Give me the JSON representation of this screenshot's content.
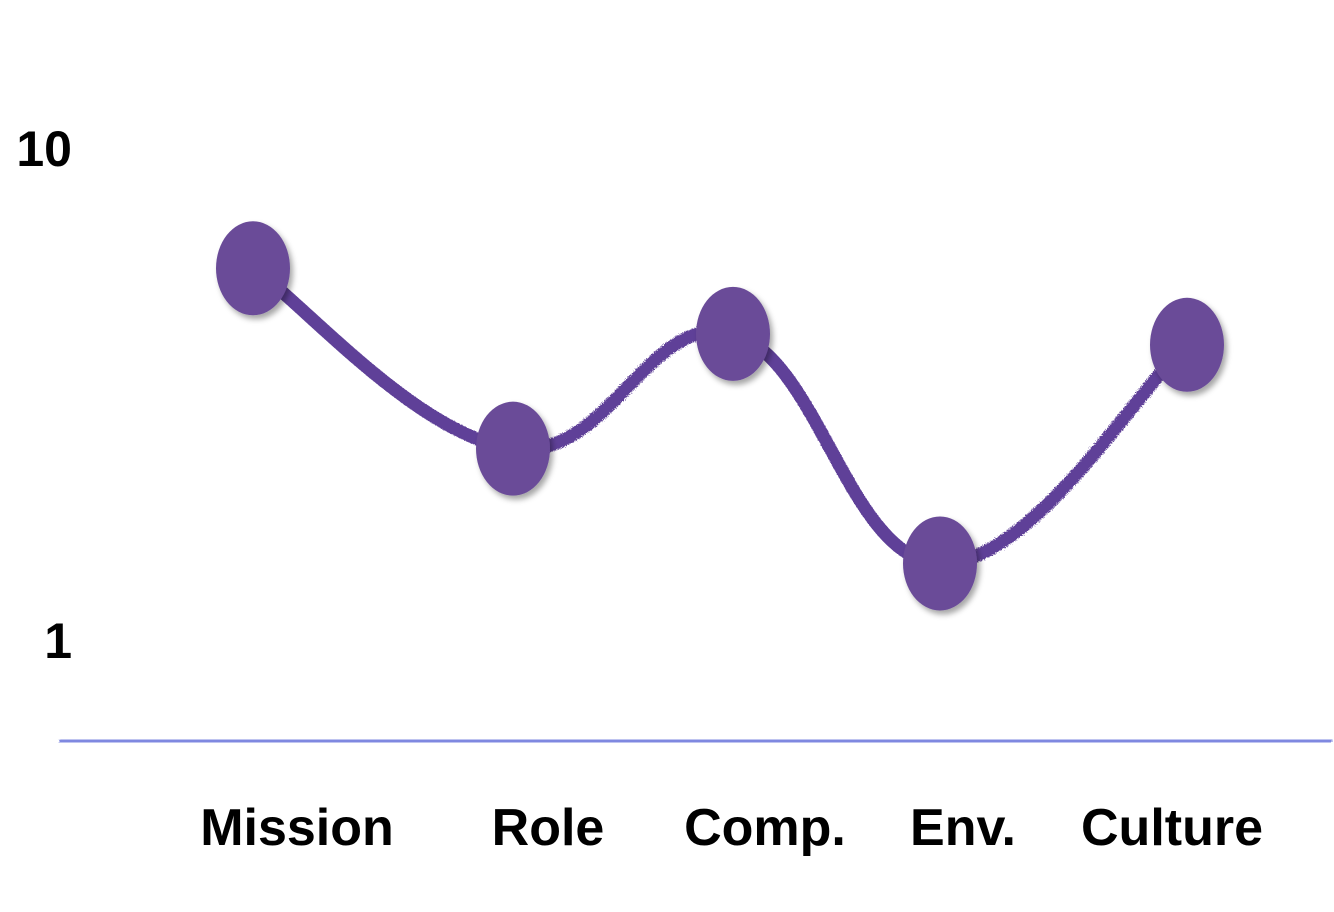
{
  "chart_data": {
    "type": "line",
    "style": "hand-drawn smooth curve with markers",
    "categories": [
      "Mission",
      "Role",
      "Comp.",
      "Env.",
      "Culture"
    ],
    "series": [
      {
        "values": [
          7.8,
          4.5,
          6.6,
          2.4,
          6.4
        ]
      }
    ],
    "ylim": [
      1,
      10
    ],
    "y_tick_labels": [
      "10",
      "1"
    ],
    "y_ticks": [
      10,
      1
    ],
    "grid": false,
    "legend": "none",
    "title": "",
    "xlabel": "",
    "ylabel": ""
  },
  "colors": {
    "axis": "#7f88e0",
    "line": "#5e3f98",
    "marker": "#6a4c98",
    "text": "#000000"
  }
}
